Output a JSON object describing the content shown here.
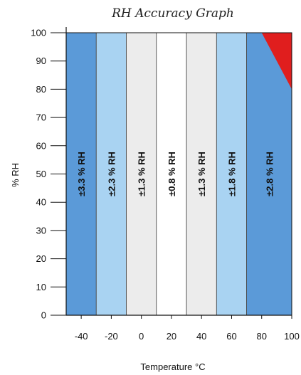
{
  "chart_data": {
    "type": "area",
    "title": "RH Accuracy Graph",
    "xlabel": "Temperature °C",
    "ylabel": "% RH",
    "xlim": [
      -50,
      100
    ],
    "ylim": [
      0,
      100
    ],
    "x_ticks": [
      -40,
      -20,
      0,
      20,
      40,
      60,
      80,
      100
    ],
    "y_ticks": [
      0,
      10,
      20,
      30,
      40,
      50,
      60,
      70,
      80,
      90,
      100
    ],
    "bands": [
      {
        "x_start": -50,
        "x_end": -30,
        "label": "±3.3 % RH",
        "color": "#5b9ad8"
      },
      {
        "x_start": -30,
        "x_end": -10,
        "label": "±2.3 % RH",
        "color": "#a9d3f2"
      },
      {
        "x_start": -10,
        "x_end": 10,
        "label": "±1.3 % RH",
        "color": "#ececec"
      },
      {
        "x_start": 10,
        "x_end": 30,
        "label": "±0.8 % RH",
        "color": "#ffffff"
      },
      {
        "x_start": 30,
        "x_end": 50,
        "label": "±1.3 % RH",
        "color": "#ececec"
      },
      {
        "x_start": 50,
        "x_end": 70,
        "label": "±1.8 % RH",
        "color": "#a9d3f2"
      },
      {
        "x_start": 70,
        "x_end": 100,
        "label": "±2.8 % RH",
        "color": "#5b9ad8"
      }
    ],
    "highlight_region": {
      "points": [
        [
          80,
          100
        ],
        [
          100,
          100
        ],
        [
          100,
          80
        ]
      ],
      "color": "#e01e1e"
    },
    "grid": false
  }
}
